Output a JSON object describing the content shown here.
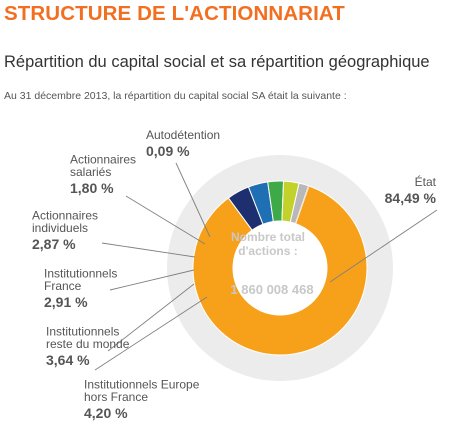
{
  "header": {
    "title": "STRUCTURE DE L'ACTIONNARIAT",
    "subtitle": "Répartition du capital social et sa répartition géographique",
    "intro": "Au 31 décembre 2013, la répartition du capital social SA était la suivante :"
  },
  "chart_data": {
    "type": "pie",
    "style": "donut",
    "center_label": [
      "Nombre total",
      "d'actions :"
    ],
    "center_value": "1 860 008 468",
    "slices": [
      {
        "name": "État",
        "label_lines": [
          "État"
        ],
        "value": 84.49,
        "value_label": "84,49 %",
        "color": "#f7a11a"
      },
      {
        "name": "Institutionnels Europe hors France",
        "label_lines": [
          "Institutionnels Europe",
          "hors France"
        ],
        "value": 4.2,
        "value_label": "4,20 %",
        "color": "#1d2f6f"
      },
      {
        "name": "Institutionnels reste du monde",
        "label_lines": [
          "Institutionnels",
          "reste du monde"
        ],
        "value": 3.64,
        "value_label": "3,64 %",
        "color": "#1f6fb5"
      },
      {
        "name": "Institutionnels France",
        "label_lines": [
          "Institutionnels",
          "France"
        ],
        "value": 2.91,
        "value_label": "2,91 %",
        "color": "#3daa47"
      },
      {
        "name": "Actionnaires individuels",
        "label_lines": [
          "Actionnaires",
          "individuels"
        ],
        "value": 2.87,
        "value_label": "2,87 %",
        "color": "#c3d22b"
      },
      {
        "name": "Actionnaires salariés",
        "label_lines": [
          "Actionnaires",
          "salariés"
        ],
        "value": 1.8,
        "value_label": "1,80 %",
        "color": "#b8b8b8"
      },
      {
        "name": "Autodétention",
        "label_lines": [
          "Autodétention"
        ],
        "value": 0.09,
        "value_label": "0,09 %",
        "color": "#f26f21"
      }
    ]
  }
}
